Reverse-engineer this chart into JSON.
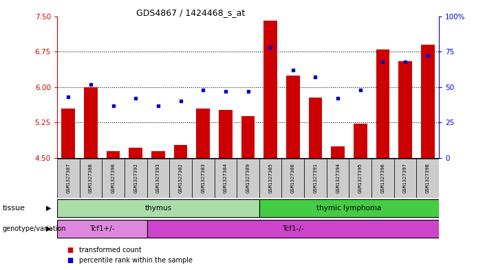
{
  "title": "GDS4867 / 1424468_s_at",
  "samples": [
    "GSM1327387",
    "GSM1327388",
    "GSM1327390",
    "GSM1327392",
    "GSM1327393",
    "GSM1327382",
    "GSM1327383",
    "GSM1327384",
    "GSM1327389",
    "GSM1327385",
    "GSM1327386",
    "GSM1327391",
    "GSM1327394",
    "GSM1327395",
    "GSM1327396",
    "GSM1327397",
    "GSM1327398"
  ],
  "bar_values": [
    5.55,
    6.0,
    4.65,
    4.72,
    4.65,
    4.78,
    5.55,
    5.52,
    5.38,
    7.4,
    6.25,
    5.78,
    4.75,
    5.22,
    6.8,
    6.55,
    6.9
  ],
  "dot_values": [
    43,
    52,
    37,
    42,
    37,
    40,
    48,
    47,
    47,
    78,
    62,
    57,
    42,
    48,
    68,
    68,
    72
  ],
  "ylim_left": [
    4.5,
    7.5
  ],
  "ylim_right": [
    0,
    100
  ],
  "yticks_left": [
    4.5,
    5.25,
    6.0,
    6.75,
    7.5
  ],
  "yticks_right": [
    0,
    25,
    50,
    75,
    100
  ],
  "hlines": [
    5.25,
    6.0,
    6.75
  ],
  "bar_color": "#cc0000",
  "dot_color": "#0000cc",
  "bar_bottom": 4.5,
  "tissue_groups": [
    {
      "label": "thymus",
      "start": 0,
      "end": 9,
      "color": "#aaddaa"
    },
    {
      "label": "thymic lymphoma",
      "start": 9,
      "end": 17,
      "color": "#44cc44"
    }
  ],
  "genotype_groups": [
    {
      "label": "Tcf1+/-",
      "start": 0,
      "end": 4,
      "color": "#dd88dd"
    },
    {
      "label": "Tcf1-/-",
      "start": 4,
      "end": 17,
      "color": "#cc44cc"
    }
  ],
  "legend_items": [
    {
      "label": "transformed count",
      "color": "#cc0000"
    },
    {
      "label": "percentile rank within the sample",
      "color": "#0000cc"
    }
  ],
  "tick_label_color_left": "#cc0000",
  "tick_label_color_right": "#0000cc",
  "bg_color": "#ffffff",
  "tissue_label": "tissue",
  "genotype_label": "genotype/variation",
  "bar_width": 0.6,
  "sample_box_color": "#cccccc"
}
